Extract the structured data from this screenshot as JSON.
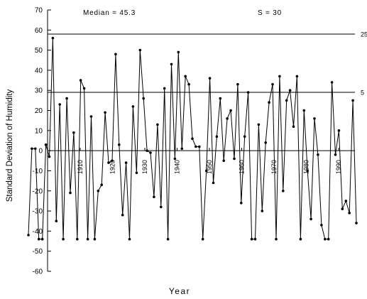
{
  "chart_data": {
    "type": "line",
    "xlabel": "Year",
    "ylabel": "Standard Deviation of Humidity",
    "ylim": [
      -60,
      70
    ],
    "yticks": [
      70,
      60,
      50,
      40,
      30,
      20,
      10,
      0,
      -10,
      -20,
      -30,
      -40,
      -50,
      -60
    ],
    "year_ticks": [
      {
        "label": "1910",
        "x": 1910
      },
      {
        "label": "1920",
        "x": 1920
      },
      {
        "label": "1930",
        "x": 1930
      },
      {
        "label": "1940",
        "x": 1940
      },
      {
        "label": "1950",
        "x": 1950
      },
      {
        "label": "1960",
        "x": 1960
      },
      {
        "label": "1970",
        "x": 1970
      },
      {
        "label": "1980",
        "x": 1980
      },
      {
        "label": "1990",
        "x": 1990
      }
    ],
    "annotations": {
      "median": "Median = 45.3",
      "s": "S = 30"
    },
    "reference_lines": [
      {
        "y": 58,
        "label": "25"
      },
      {
        "y": 29,
        "label": "5"
      },
      {
        "y": 0,
        "label": ""
      }
    ],
    "series": [
      {
        "values": [
          -42,
          1,
          1,
          -44,
          -44,
          3,
          -3,
          56,
          -35,
          23,
          -44,
          26,
          -21,
          9,
          -44,
          35,
          31,
          -44,
          17,
          -44,
          -20,
          -17,
          19,
          -6,
          -5,
          48,
          3,
          -32,
          -6,
          -44,
          22,
          -11,
          50,
          26,
          0,
          -1,
          -23,
          13,
          -28,
          31,
          -44,
          43,
          -4,
          49,
          1,
          37,
          33,
          6,
          2,
          2,
          -44,
          -10,
          36,
          -16,
          7,
          26,
          -5,
          16,
          20,
          -4,
          33,
          -26,
          7,
          29,
          -44,
          -44,
          13,
          -30,
          4,
          24,
          33,
          -44,
          37,
          -20,
          25,
          30,
          12,
          37,
          -44,
          20,
          -10,
          -34,
          16,
          -2,
          -37,
          -44,
          -44,
          34,
          -2,
          10,
          -29,
          -25,
          -31,
          25,
          -36
        ]
      }
    ]
  }
}
